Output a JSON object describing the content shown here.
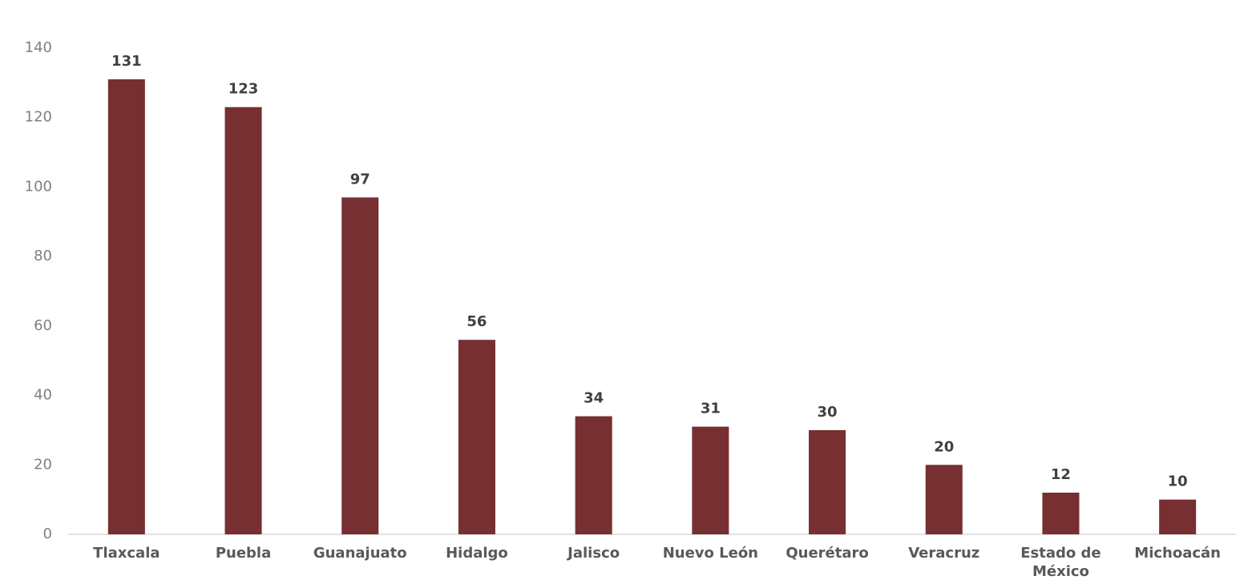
{
  "chart_data": {
    "type": "bar",
    "categories": [
      "Tlaxcala",
      "Puebla",
      "Guanajuato",
      "Hidalgo",
      "Jalisco",
      "Nuevo León",
      "Querétaro",
      "Veracruz",
      "Estado de México",
      "Michoacán"
    ],
    "values": [
      131,
      123,
      97,
      56,
      34,
      31,
      30,
      20,
      12,
      10
    ],
    "color": "#772f31",
    "ylim": [
      0,
      140
    ],
    "yticks": [
      0,
      20,
      40,
      60,
      80,
      100,
      120,
      140
    ],
    "grid": false
  }
}
